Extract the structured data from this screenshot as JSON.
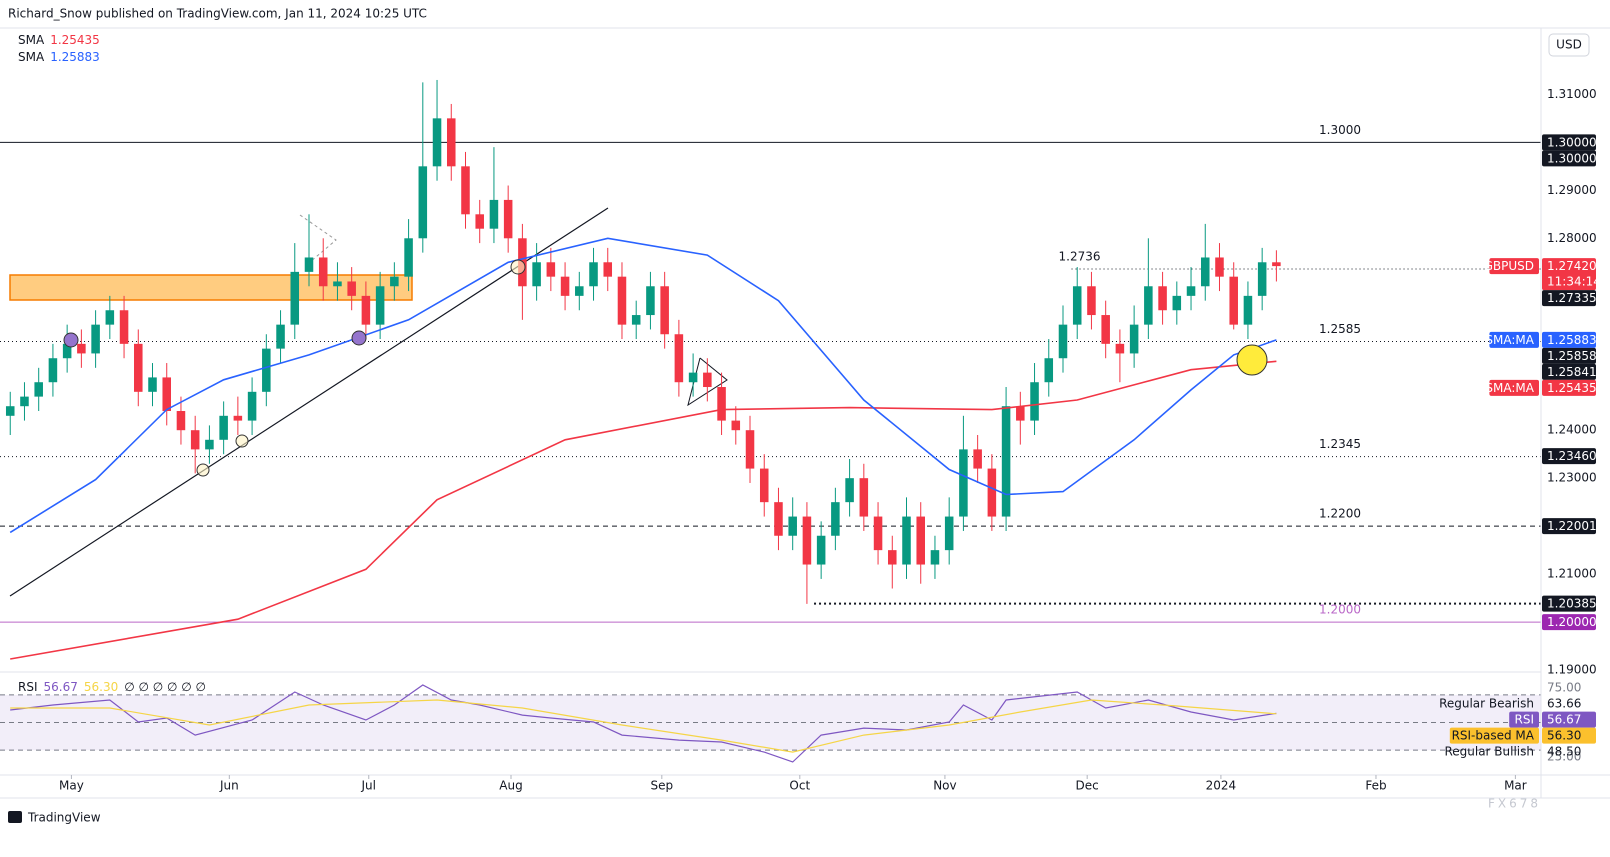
{
  "header": {
    "publisher": "Richard_Snow published on TradingView.com, Jan 11, 2024 10:25 UTC",
    "currency": "USD",
    "footer_logo": "TradingView",
    "watermark": "FX678"
  },
  "chart_data": [
    {
      "type": "candlestick",
      "symbol": "GBPUSD",
      "up_color": "#089981",
      "down_color": "#f23645",
      "open": [
        1.243,
        1.245,
        1.247,
        1.25,
        1.255,
        1.258,
        1.256,
        1.262,
        1.265,
        1.258,
        1.248,
        1.251,
        1.244,
        1.24,
        1.236,
        1.238,
        1.243,
        1.242,
        1.248,
        1.257,
        1.262,
        1.273,
        1.276,
        1.27,
        1.271,
        1.268,
        1.262,
        1.27,
        1.272,
        1.28,
        1.295,
        1.305,
        1.295,
        1.285,
        1.282,
        1.288,
        1.28,
        1.27,
        1.275,
        1.272,
        1.268,
        1.27,
        1.275,
        1.272,
        1.262,
        1.264,
        1.27,
        1.26,
        1.25,
        1.252,
        1.249,
        1.242,
        1.24,
        1.232,
        1.225,
        1.218,
        1.222,
        1.212,
        1.218,
        1.225,
        1.23,
        1.222,
        1.215,
        1.212,
        1.222,
        1.212,
        1.215,
        1.222,
        1.236,
        1.232,
        1.222,
        1.245,
        1.242,
        1.25,
        1.255,
        1.262,
        1.27,
        1.264,
        1.258,
        1.256,
        1.262,
        1.27,
        1.265,
        1.268,
        1.27,
        1.276,
        1.272,
        1.262,
        1.268,
        1.275
      ],
      "high": [
        1.248,
        1.25,
        1.253,
        1.258,
        1.262,
        1.261,
        1.265,
        1.268,
        1.268,
        1.261,
        1.254,
        1.254,
        1.247,
        1.243,
        1.241,
        1.246,
        1.247,
        1.251,
        1.26,
        1.265,
        1.279,
        1.285,
        1.28,
        1.275,
        1.274,
        1.271,
        1.273,
        1.275,
        1.284,
        1.3125,
        1.313,
        1.308,
        1.298,
        1.288,
        1.299,
        1.291,
        1.283,
        1.279,
        1.278,
        1.275,
        1.273,
        1.278,
        1.278,
        1.275,
        1.267,
        1.273,
        1.273,
        1.263,
        1.256,
        1.255,
        1.252,
        1.245,
        1.243,
        1.235,
        1.228,
        1.226,
        1.225,
        1.221,
        1.228,
        1.234,
        1.233,
        1.225,
        1.218,
        1.226,
        1.225,
        1.218,
        1.226,
        1.243,
        1.239,
        1.235,
        1.249,
        1.248,
        1.254,
        1.259,
        1.266,
        1.274,
        1.273,
        1.267,
        1.261,
        1.266,
        1.28,
        1.273,
        1.271,
        1.274,
        1.283,
        1.279,
        1.275,
        1.271,
        1.278,
        1.2775
      ],
      "low": [
        1.239,
        1.242,
        1.244,
        1.247,
        1.252,
        1.253,
        1.253,
        1.259,
        1.255,
        1.245,
        1.245,
        1.241,
        1.237,
        1.231,
        1.233,
        1.235,
        1.239,
        1.239,
        1.245,
        1.254,
        1.259,
        1.27,
        1.267,
        1.267,
        1.265,
        1.259,
        1.259,
        1.267,
        1.269,
        1.277,
        1.292,
        1.292,
        1.282,
        1.279,
        1.279,
        1.277,
        1.263,
        1.267,
        1.269,
        1.265,
        1.265,
        1.267,
        1.269,
        1.259,
        1.259,
        1.261,
        1.257,
        1.247,
        1.247,
        1.246,
        1.239,
        1.237,
        1.229,
        1.222,
        1.215,
        1.215,
        1.2038,
        1.209,
        1.215,
        1.222,
        1.219,
        1.212,
        1.207,
        1.209,
        1.208,
        1.209,
        1.212,
        1.219,
        1.229,
        1.219,
        1.219,
        1.237,
        1.239,
        1.247,
        1.252,
        1.259,
        1.261,
        1.255,
        1.25,
        1.253,
        1.259,
        1.262,
        1.262,
        1.265,
        1.267,
        1.269,
        1.261,
        1.259,
        1.265,
        1.271
      ],
      "close": [
        1.245,
        1.247,
        1.25,
        1.255,
        1.258,
        1.256,
        1.262,
        1.265,
        1.258,
        1.248,
        1.251,
        1.244,
        1.24,
        1.236,
        1.238,
        1.243,
        1.242,
        1.248,
        1.257,
        1.262,
        1.273,
        1.276,
        1.27,
        1.271,
        1.268,
        1.262,
        1.27,
        1.272,
        1.28,
        1.295,
        1.305,
        1.295,
        1.285,
        1.282,
        1.288,
        1.28,
        1.27,
        1.275,
        1.272,
        1.268,
        1.27,
        1.275,
        1.272,
        1.262,
        1.264,
        1.27,
        1.26,
        1.25,
        1.252,
        1.249,
        1.242,
        1.24,
        1.232,
        1.225,
        1.218,
        1.222,
        1.212,
        1.218,
        1.225,
        1.23,
        1.222,
        1.215,
        1.212,
        1.222,
        1.212,
        1.215,
        1.222,
        1.236,
        1.232,
        1.222,
        1.245,
        1.242,
        1.25,
        1.255,
        1.262,
        1.27,
        1.264,
        1.258,
        1.256,
        1.262,
        1.27,
        1.265,
        1.268,
        1.27,
        1.276,
        1.272,
        1.262,
        1.268,
        1.275,
        1.2742
      ],
      "xlim": [
        -0.72,
        107.6
      ],
      "xticks": [
        {
          "value": 4.3,
          "label": "May"
        },
        {
          "value": 15.4,
          "label": "Jun"
        },
        {
          "value": 25.2,
          "label": "Jul"
        },
        {
          "value": 35.2,
          "label": "Aug"
        },
        {
          "value": 45.8,
          "label": "Sep"
        },
        {
          "value": 55.5,
          "label": "Oct"
        },
        {
          "value": 65.7,
          "label": "Nov"
        },
        {
          "value": 75.7,
          "label": "Dec"
        },
        {
          "value": 85.1,
          "label": "2024"
        },
        {
          "value": 96,
          "label": "Feb"
        },
        {
          "value": 105.8,
          "label": "Mar"
        }
      ],
      "ylim": [
        1.1896,
        1.328
      ],
      "yticks": [
        {
          "value": 1.19,
          "label": "1.19000"
        },
        {
          "value": 1.21,
          "label": "1.21000"
        },
        {
          "value": 1.23,
          "label": "1.23000"
        },
        {
          "value": 1.24,
          "label": "1.24000"
        },
        {
          "value": 1.28,
          "label": "1.28000"
        },
        {
          "value": 1.29,
          "label": "1.29000"
        },
        {
          "value": 1.31,
          "label": "1.31000"
        }
      ],
      "series": [
        {
          "name": "SMA",
          "last_label": "1.25435",
          "color": "#f23645",
          "x": [
            0,
            16,
            25,
            30,
            39,
            50,
            59,
            69,
            75,
            83,
            89
          ],
          "values": [
            1.1923,
            1.2006,
            1.211,
            1.2255,
            1.238,
            1.2443,
            1.2447,
            1.2443,
            1.2463,
            1.2526,
            1.25435
          ]
        },
        {
          "name": "SMA",
          "last_label": "1.25883",
          "color": "#2962ff",
          "x": [
            0,
            6,
            11,
            15,
            21,
            28,
            35,
            42,
            49,
            54,
            60,
            66,
            70,
            74,
            79,
            83,
            86,
            89
          ],
          "values": [
            1.2187,
            1.2297,
            1.2443,
            1.2505,
            1.2557,
            1.263,
            1.275,
            1.28,
            1.2765,
            1.267,
            1.2463,
            1.2318,
            1.2266,
            1.2272,
            1.238,
            1.2484,
            1.2557,
            1.25883
          ]
        }
      ],
      "levels": [
        {
          "value": 1.3,
          "label": "1.3000",
          "style": "solid",
          "color": "#131722"
        },
        {
          "value": 1.2736,
          "label": "1.2736",
          "style": "dotted",
          "color": "#131722",
          "start": 74.6
        },
        {
          "value": 1.2585,
          "label": "1.2585",
          "style": "dotted",
          "color": "#131722"
        },
        {
          "value": 1.2345,
          "label": "1.2345",
          "style": "dotted",
          "color": "#131722"
        },
        {
          "value": 1.22,
          "label": "1.2200",
          "style": "dashed",
          "color": "#131722"
        },
        {
          "value": 1.20385,
          "style": "dotted-bold",
          "color": "#131722",
          "start": 56.5
        },
        {
          "value": 1.2,
          "label": "1.2000",
          "style": "solid",
          "color": "#ba68c8"
        }
      ],
      "price_tags": [
        {
          "value": 1.3,
          "label": "1.30000",
          "color": "#131722"
        },
        {
          "value": 1.3,
          "label": "1.30000",
          "color": "#131722"
        },
        {
          "name": "GBPUSD",
          "value": 1.2742,
          "label": "1.27420",
          "sub": "11:34:14",
          "color": "#f23645"
        },
        {
          "value": 1.27335,
          "label": "1.27335",
          "color": "#131722"
        },
        {
          "name": "SMA:MA",
          "value": 1.25883,
          "label": "1.25883",
          "color": "#2962ff"
        },
        {
          "value": 1.25858,
          "label": "1.25858",
          "color": "#131722"
        },
        {
          "value": 1.25841,
          "label": "1.25841",
          "color": "#131722"
        },
        {
          "name": "SMA:MA",
          "value": 1.25435,
          "label": "1.25435",
          "color": "#f23645"
        },
        {
          "value": 1.2346,
          "label": "1.23460",
          "color": "#131722"
        },
        {
          "value": 1.22001,
          "label": "1.22001",
          "color": "#131722"
        },
        {
          "value": 1.20385,
          "label": "1.20385",
          "color": "#131722"
        },
        {
          "value": 1.2,
          "label": "1.20000",
          "color": "#9c27b0"
        }
      ]
    },
    {
      "type": "line",
      "title": "RSI",
      "legend_values": [
        "56.67",
        "56.30"
      ],
      "legend_extra": "∅ ∅ ∅ ∅ ∅ ∅",
      "xlim": [
        -0.72,
        107.6
      ],
      "ylim": [
        12,
        83.7
      ],
      "band": [
        30,
        70
      ],
      "midline": 50,
      "band_color": "#7e57c2",
      "yticks": [
        {
          "value": 75,
          "label": "75.00"
        },
        {
          "value": 25,
          "label": "25.00"
        }
      ],
      "series": [
        {
          "name": "RSI",
          "color": "#7e57c2",
          "x": [
            0,
            3,
            7,
            9,
            11,
            13,
            17,
            20,
            22,
            25,
            27,
            29,
            31,
            33,
            36,
            38,
            41,
            43,
            47,
            50,
            53,
            55,
            57,
            60,
            63,
            66,
            67,
            69,
            70,
            75,
            77,
            80,
            83,
            86,
            89
          ],
          "values": [
            59.1,
            62.7,
            66.3,
            50.4,
            53.3,
            40.9,
            51.8,
            72.1,
            62.7,
            51.8,
            62.7,
            77.2,
            66.3,
            62.7,
            55.4,
            53.3,
            50.4,
            40.9,
            37.3,
            35.9,
            28.6,
            21.4,
            40.9,
            46,
            44.6,
            50.4,
            62.7,
            51.8,
            66.3,
            72.1,
            60.5,
            66.3,
            57.6,
            51.8,
            56.67
          ]
        },
        {
          "name": "RSI-based MA",
          "color": "#f5d547",
          "x": [
            0,
            7,
            14,
            21,
            30,
            36,
            43,
            50,
            55,
            60,
            66,
            71,
            76,
            82,
            89
          ],
          "values": [
            60.5,
            60.5,
            48.2,
            62.7,
            66.3,
            60.5,
            48.2,
            37.3,
            28.6,
            40.9,
            48.2,
            57.6,
            66.3,
            62,
            56.3
          ]
        }
      ],
      "tags": [
        {
          "name": "Regular Bearish",
          "value": 63.66,
          "label": "63.66"
        },
        {
          "name": "RSI",
          "value": 56.67,
          "label": "56.67",
          "color": "#7e57c2",
          "text_color": "#ffffff"
        },
        {
          "name": "RSI-based MA",
          "value": 56.3,
          "label": "56.30",
          "color": "#fbc02d",
          "text_color": "#131722"
        },
        {
          "name": "Regular Bullish",
          "value": 48.5,
          "label": "48.50"
        }
      ]
    }
  ]
}
